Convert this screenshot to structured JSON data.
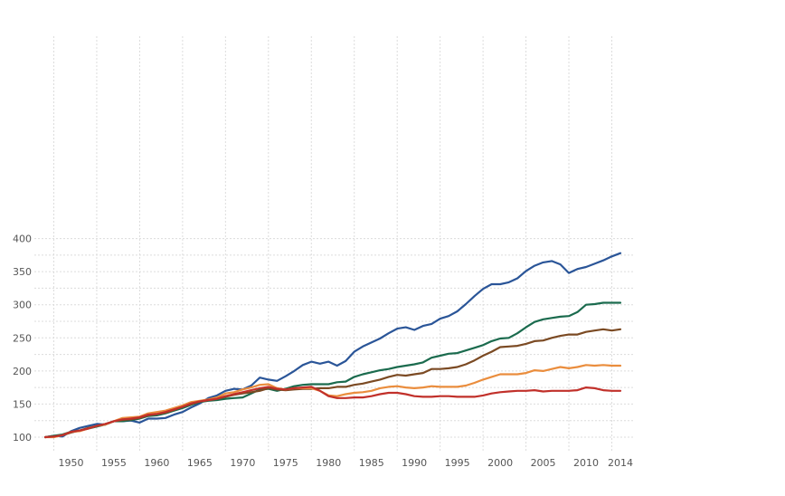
{
  "chart_data": {
    "type": "line",
    "title": "",
    "xlabel": "",
    "ylabel": "",
    "xlim": [
      1947,
      2014
    ],
    "ylim": [
      95,
      400
    ],
    "grid": true,
    "x_ticks": [
      1950,
      1955,
      1960,
      1965,
      1970,
      1975,
      1980,
      1985,
      1990,
      1995,
      2000,
      2005,
      2010,
      2014
    ],
    "y_ticks": [
      100,
      150,
      200,
      250,
      300,
      350,
      400
    ],
    "series": [
      {
        "color": "#2a5598",
        "x": [
          1947,
          1948,
          1949,
          1950,
          1951,
          1952,
          1953,
          1954,
          1955,
          1956,
          1957,
          1958,
          1959,
          1960,
          1961,
          1962,
          1963,
          1964,
          1965,
          1966,
          1967,
          1968,
          1969,
          1970,
          1971,
          1972,
          1973,
          1974,
          1975,
          1976,
          1977,
          1978,
          1979,
          1980,
          1981,
          1982,
          1983,
          1984,
          1985,
          1986,
          1987,
          1988,
          1989,
          1990,
          1991,
          1992,
          1993,
          1994,
          1995,
          1996,
          1997,
          1998,
          1999,
          2000,
          2001,
          2002,
          2003,
          2004,
          2005,
          2006,
          2007,
          2008,
          2009,
          2010,
          2011,
          2012,
          2013,
          2014
        ],
        "values": [
          100,
          102,
          101,
          109,
          114,
          117,
          120,
          119,
          124,
          124,
          125,
          122,
          128,
          128,
          129,
          134,
          138,
          145,
          151,
          159,
          163,
          170,
          173,
          172,
          178,
          190,
          187,
          185,
          192,
          200,
          209,
          214,
          211,
          214,
          208,
          215,
          229,
          237,
          243,
          249,
          257,
          264,
          266,
          262,
          268,
          271,
          279,
          283,
          290,
          301,
          313,
          324,
          331,
          331,
          334,
          340,
          351,
          359,
          364,
          366,
          361,
          348,
          354,
          357,
          362,
          367,
          373,
          378
        ]
      },
      {
        "color": "#1b6b4e",
        "x": [
          1947,
          1948,
          1949,
          1950,
          1951,
          1952,
          1953,
          1954,
          1955,
          1956,
          1957,
          1958,
          1959,
          1960,
          1961,
          1962,
          1963,
          1964,
          1965,
          1966,
          1967,
          1968,
          1969,
          1970,
          1971,
          1972,
          1973,
          1974,
          1975,
          1976,
          1977,
          1978,
          1979,
          1980,
          1981,
          1982,
          1983,
          1984,
          1985,
          1986,
          1987,
          1988,
          1989,
          1990,
          1991,
          1992,
          1993,
          1994,
          1995,
          1996,
          1997,
          1998,
          1999,
          2000,
          2001,
          2002,
          2003,
          2004,
          2005,
          2006,
          2007,
          2008,
          2009,
          2010,
          2011,
          2012,
          2013,
          2014
        ],
        "values": [
          100,
          102,
          104,
          108,
          110,
          113,
          116,
          119,
          124,
          124,
          126,
          128,
          132,
          133,
          136,
          140,
          144,
          149,
          153,
          155,
          156,
          158,
          159,
          160,
          166,
          172,
          173,
          170,
          173,
          177,
          179,
          180,
          180,
          180,
          183,
          184,
          191,
          195,
          198,
          201,
          203,
          206,
          208,
          210,
          213,
          220,
          223,
          226,
          227,
          231,
          235,
          239,
          245,
          249,
          250,
          257,
          266,
          274,
          278,
          280,
          282,
          283,
          289,
          300,
          301,
          303,
          303,
          303
        ]
      },
      {
        "color": "#7b4a23",
        "x": [
          1947,
          1948,
          1949,
          1950,
          1951,
          1952,
          1953,
          1954,
          1955,
          1956,
          1957,
          1958,
          1959,
          1960,
          1961,
          1962,
          1963,
          1964,
          1965,
          1966,
          1967,
          1968,
          1969,
          1970,
          1971,
          1972,
          1973,
          1974,
          1975,
          1976,
          1977,
          1978,
          1979,
          1980,
          1981,
          1982,
          1983,
          1984,
          1985,
          1986,
          1987,
          1988,
          1989,
          1990,
          1991,
          1992,
          1993,
          1994,
          1995,
          1996,
          1997,
          1998,
          1999,
          2000,
          2001,
          2002,
          2003,
          2004,
          2005,
          2006,
          2007,
          2008,
          2009,
          2010,
          2011,
          2012,
          2013,
          2014
        ],
        "values": [
          100,
          101,
          103,
          107,
          110,
          114,
          117,
          120,
          124,
          126,
          127,
          129,
          133,
          135,
          137,
          141,
          146,
          150,
          154,
          156,
          158,
          161,
          164,
          166,
          168,
          170,
          174,
          172,
          171,
          172,
          173,
          173,
          174,
          174,
          176,
          176,
          179,
          181,
          184,
          187,
          191,
          194,
          193,
          195,
          197,
          203,
          203,
          204,
          206,
          210,
          216,
          223,
          229,
          236,
          237,
          238,
          241,
          245,
          246,
          250,
          253,
          255,
          255,
          259,
          261,
          263,
          261,
          263
        ]
      },
      {
        "color": "#ea8d3d",
        "x": [
          1947,
          1948,
          1949,
          1950,
          1951,
          1952,
          1953,
          1954,
          1955,
          1956,
          1957,
          1958,
          1959,
          1960,
          1961,
          1962,
          1963,
          1964,
          1965,
          1966,
          1967,
          1968,
          1969,
          1970,
          1971,
          1972,
          1973,
          1974,
          1975,
          1976,
          1977,
          1978,
          1979,
          1980,
          1981,
          1982,
          1983,
          1984,
          1985,
          1986,
          1987,
          1988,
          1989,
          1990,
          1991,
          1992,
          1993,
          1994,
          1995,
          1996,
          1997,
          1998,
          1999,
          2000,
          2001,
          2002,
          2003,
          2004,
          2005,
          2006,
          2007,
          2008,
          2009,
          2010,
          2011,
          2012,
          2013,
          2014
        ],
        "values": [
          100,
          100,
          103,
          108,
          109,
          113,
          117,
          119,
          124,
          129,
          130,
          131,
          136,
          138,
          140,
          144,
          148,
          153,
          155,
          157,
          160,
          166,
          168,
          172,
          175,
          179,
          180,
          174,
          172,
          174,
          174,
          174,
          170,
          163,
          162,
          165,
          167,
          168,
          170,
          174,
          176,
          177,
          175,
          174,
          175,
          177,
          176,
          176,
          176,
          178,
          182,
          187,
          191,
          195,
          195,
          195,
          197,
          201,
          200,
          203,
          206,
          204,
          206,
          209,
          208,
          209,
          208,
          208
        ]
      },
      {
        "color": "#c1302a",
        "x": [
          1947,
          1948,
          1949,
          1950,
          1951,
          1952,
          1953,
          1954,
          1955,
          1956,
          1957,
          1958,
          1959,
          1960,
          1961,
          1962,
          1963,
          1964,
          1965,
          1966,
          1967,
          1968,
          1969,
          1970,
          1971,
          1972,
          1973,
          1974,
          1975,
          1976,
          1977,
          1978,
          1979,
          1980,
          1981,
          1982,
          1983,
          1984,
          1985,
          1986,
          1987,
          1988,
          1989,
          1990,
          1991,
          1992,
          1993,
          1994,
          1995,
          1996,
          1997,
          1998,
          1999,
          2000,
          2001,
          2002,
          2003,
          2004,
          2005,
          2006,
          2007,
          2008,
          2009,
          2010,
          2011,
          2012,
          2013,
          2014
        ],
        "values": [
          100,
          101,
          103,
          108,
          110,
          113,
          117,
          120,
          124,
          127,
          128,
          130,
          134,
          135,
          138,
          142,
          146,
          151,
          154,
          156,
          158,
          162,
          165,
          168,
          171,
          174,
          176,
          173,
          172,
          174,
          175,
          176,
          170,
          162,
          159,
          159,
          160,
          160,
          162,
          165,
          167,
          167,
          165,
          162,
          161,
          161,
          162,
          162,
          161,
          161,
          161,
          163,
          166,
          168,
          169,
          170,
          170,
          171,
          169,
          170,
          170,
          170,
          171,
          175,
          174,
          171,
          170,
          170
        ]
      }
    ]
  }
}
